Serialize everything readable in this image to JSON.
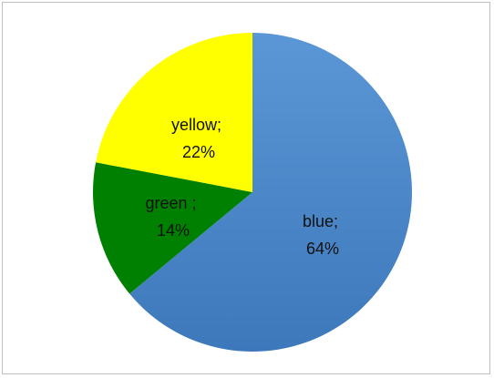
{
  "chart_data": {
    "type": "pie",
    "title": "",
    "categories": [
      "blue",
      "green ",
      "yellow"
    ],
    "values": [
      64,
      14,
      22
    ],
    "colors": [
      "#4a86c8",
      "#008000",
      "#ffff00"
    ],
    "labels": [
      {
        "line1": "blue;",
        "line2": "64%"
      },
      {
        "line1": "green ;",
        "line2": "14%"
      },
      {
        "line1": "yellow;",
        "line2": "22%"
      }
    ],
    "start_angle_deg": 0,
    "direction": "clockwise",
    "legend": "none"
  }
}
